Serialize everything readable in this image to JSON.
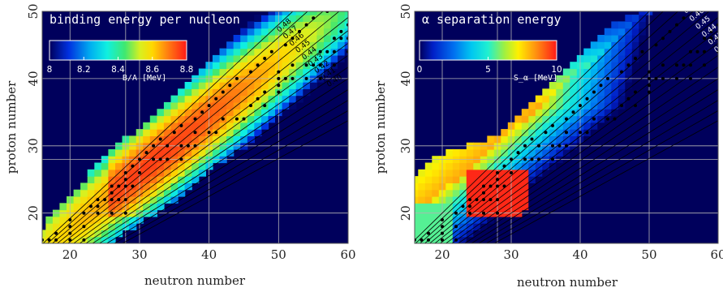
{
  "chart_data": [
    {
      "type": "heatmap",
      "title": "binding energy per nucleon",
      "xlabel": "neutron number",
      "ylabel": "proton number",
      "xlim": [
        16,
        60
      ],
      "ylim": [
        15.5,
        50
      ],
      "xticks": [
        "20",
        "30",
        "40",
        "50",
        "60"
      ],
      "yticks": [
        "20",
        "30",
        "40",
        "50"
      ],
      "grid": true,
      "colorbar": {
        "label": "B/A [MeV]",
        "range": [
          8.0,
          8.8
        ],
        "ticks": [
          "8",
          "8.2",
          "8.4",
          "8.6",
          "8.8"
        ],
        "placement": "top-left"
      },
      "contour_levels": [
        "0.48",
        "0.47",
        "0.46",
        "0.45",
        "0.44",
        "0.43",
        "0.42",
        "0.41",
        "0.40"
      ],
      "contour_values": [
        0.49,
        0.48,
        0.47,
        0.46,
        0.45,
        0.44,
        0.43,
        0.42,
        0.41,
        0.4,
        0.39,
        0.38,
        0.37,
        0.36
      ],
      "bands": [
        {
          "Z": 16,
          "N": [
            16,
            26
          ]
        },
        {
          "Z": 17,
          "N": [
            16,
            27
          ]
        },
        {
          "Z": 18,
          "N": [
            17,
            29
          ]
        },
        {
          "Z": 19,
          "N": [
            17,
            30
          ]
        },
        {
          "Z": 20,
          "N": [
            18,
            32
          ]
        },
        {
          "Z": 21,
          "N": [
            19,
            33
          ]
        },
        {
          "Z": 22,
          "N": [
            20,
            35
          ]
        },
        {
          "Z": 23,
          "N": [
            21,
            36
          ]
        },
        {
          "Z": 24,
          "N": [
            22,
            37
          ]
        },
        {
          "Z": 25,
          "N": [
            23,
            38
          ]
        },
        {
          "Z": 26,
          "N": [
            23,
            39
          ]
        },
        {
          "Z": 27,
          "N": [
            24,
            40
          ]
        },
        {
          "Z": 28,
          "N": [
            25,
            42
          ]
        },
        {
          "Z": 29,
          "N": [
            26,
            43
          ]
        },
        {
          "Z": 30,
          "N": [
            27,
            45
          ]
        },
        {
          "Z": 31,
          "N": [
            28,
            46
          ]
        },
        {
          "Z": 32,
          "N": [
            30,
            47
          ]
        },
        {
          "Z": 33,
          "N": [
            31,
            48
          ]
        },
        {
          "Z": 34,
          "N": [
            32,
            50
          ]
        },
        {
          "Z": 35,
          "N": [
            33,
            51
          ]
        },
        {
          "Z": 36,
          "N": [
            34,
            52
          ]
        },
        {
          "Z": 37,
          "N": [
            35,
            53
          ]
        },
        {
          "Z": 38,
          "N": [
            36,
            54
          ]
        },
        {
          "Z": 39,
          "N": [
            37,
            55
          ]
        },
        {
          "Z": 40,
          "N": [
            38,
            57
          ]
        },
        {
          "Z": 41,
          "N": [
            39,
            58
          ]
        },
        {
          "Z": 42,
          "N": [
            40,
            59
          ]
        },
        {
          "Z": 43,
          "N": [
            41,
            60
          ]
        },
        {
          "Z": 44,
          "N": [
            42,
            60
          ]
        },
        {
          "Z": 45,
          "N": [
            43,
            60
          ]
        },
        {
          "Z": 46,
          "N": [
            44,
            60
          ]
        },
        {
          "Z": 47,
          "N": [
            45,
            60
          ]
        },
        {
          "Z": 48,
          "N": [
            46,
            60
          ]
        },
        {
          "Z": 49,
          "N": [
            47,
            60
          ]
        },
        {
          "Z": 50,
          "N": [
            48,
            60
          ]
        }
      ],
      "stable_nuclei": [
        [
          16,
          16
        ],
        [
          17,
          16
        ],
        [
          18,
          16
        ],
        [
          18,
          17
        ],
        [
          20,
          18
        ],
        [
          20,
          19
        ],
        [
          22,
          20
        ],
        [
          23,
          21
        ],
        [
          24,
          22
        ],
        [
          26,
          23
        ],
        [
          27,
          24
        ],
        [
          28,
          25
        ],
        [
          28,
          26
        ],
        [
          29,
          27
        ],
        [
          30,
          28
        ],
        [
          31,
          29
        ],
        [
          32,
          30
        ],
        [
          33,
          31
        ],
        [
          35,
          32
        ],
        [
          36,
          33
        ],
        [
          38,
          34
        ],
        [
          39,
          35
        ],
        [
          40,
          36
        ],
        [
          41,
          37
        ],
        [
          42,
          38
        ],
        [
          43,
          39
        ],
        [
          44,
          40
        ],
        [
          46,
          41
        ],
        [
          47,
          42
        ],
        [
          48,
          43
        ],
        [
          49,
          44
        ],
        [
          51,
          45
        ],
        [
          52,
          46
        ],
        [
          53,
          47
        ],
        [
          54,
          48
        ],
        [
          55,
          49
        ],
        [
          57,
          50
        ],
        [
          20,
          16
        ],
        [
          22,
          16
        ],
        [
          20,
          17
        ],
        [
          22,
          18
        ],
        [
          24,
          20
        ],
        [
          26,
          20
        ],
        [
          28,
          20
        ],
        [
          24,
          21
        ],
        [
          25,
          22
        ],
        [
          26,
          22
        ],
        [
          27,
          22
        ],
        [
          28,
          22
        ],
        [
          26,
          24
        ],
        [
          28,
          24
        ],
        [
          29,
          24
        ],
        [
          30,
          26
        ],
        [
          32,
          28
        ],
        [
          33,
          28
        ],
        [
          34,
          28
        ],
        [
          36,
          28
        ],
        [
          34,
          30
        ],
        [
          36,
          30
        ],
        [
          37,
          30
        ],
        [
          38,
          30
        ],
        [
          38,
          32
        ],
        [
          40,
          32
        ],
        [
          41,
          32
        ],
        [
          42,
          34
        ],
        [
          44,
          34
        ],
        [
          45,
          34
        ],
        [
          46,
          36
        ],
        [
          48,
          36
        ],
        [
          47,
          37
        ],
        [
          50,
          38
        ],
        [
          48,
          38
        ],
        [
          50,
          40
        ],
        [
          51,
          40
        ],
        [
          52,
          40
        ],
        [
          54,
          40
        ],
        [
          56,
          40
        ],
        [
          52,
          42
        ],
        [
          54,
          42
        ],
        [
          55,
          42
        ],
        [
          56,
          42
        ],
        [
          58,
          42
        ],
        [
          56,
          44
        ],
        [
          57,
          44
        ],
        [
          58,
          44
        ],
        [
          60,
          44
        ],
        [
          58,
          46
        ],
        [
          59,
          46
        ],
        [
          60,
          46
        ],
        [
          60,
          48
        ],
        [
          59,
          47
        ],
        [
          50,
          39
        ],
        [
          50,
          41
        ]
      ]
    },
    {
      "type": "heatmap",
      "title": "α separation energy",
      "xlabel": "neutron number",
      "ylabel": "proton number",
      "xlim": [
        16,
        60
      ],
      "ylim": [
        15.5,
        50
      ],
      "xticks": [
        "20",
        "30",
        "40",
        "50",
        "60"
      ],
      "yticks": [
        "20",
        "30",
        "40",
        "50"
      ],
      "grid": true,
      "colorbar": {
        "label": "S_α [MeV]",
        "range": [
          0,
          10
        ],
        "ticks": [
          "0",
          "5",
          "10"
        ],
        "placement": "top-left"
      },
      "contour_levels": [
        "0.50",
        "0.49",
        "0.48",
        "0.47",
        "0.46",
        "0.45",
        "0.44",
        "0.43",
        "0.42",
        "0.41",
        "0.40"
      ],
      "contour_values": [
        0.5,
        0.49,
        0.48,
        0.47,
        0.46,
        0.45,
        0.44,
        0.43,
        0.42,
        0.41,
        0.4,
        0.39,
        0.38,
        0.37,
        0.36
      ],
      "bands": [
        {
          "Z": 16,
          "N": [
            16,
            27
          ]
        },
        {
          "Z": 17,
          "N": [
            16,
            28
          ]
        },
        {
          "Z": 18,
          "N": [
            16,
            29
          ]
        },
        {
          "Z": 19,
          "N": [
            16,
            30
          ]
        },
        {
          "Z": 20,
          "N": [
            16,
            31
          ]
        },
        {
          "Z": 21,
          "N": [
            16,
            33
          ]
        },
        {
          "Z": 22,
          "N": [
            16,
            34
          ]
        },
        {
          "Z": 23,
          "N": [
            16,
            35
          ]
        },
        {
          "Z": 24,
          "N": [
            16,
            36
          ]
        },
        {
          "Z": 25,
          "N": [
            16,
            37
          ]
        },
        {
          "Z": 26,
          "N": [
            17,
            39
          ]
        },
        {
          "Z": 27,
          "N": [
            18,
            40
          ]
        },
        {
          "Z": 28,
          "N": [
            19,
            41
          ]
        },
        {
          "Z": 29,
          "N": [
            21,
            42
          ]
        },
        {
          "Z": 30,
          "N": [
            24,
            44
          ]
        },
        {
          "Z": 31,
          "N": [
            27,
            45
          ]
        },
        {
          "Z": 32,
          "N": [
            29,
            46
          ]
        },
        {
          "Z": 33,
          "N": [
            30,
            47
          ]
        },
        {
          "Z": 34,
          "N": [
            31,
            49
          ]
        },
        {
          "Z": 35,
          "N": [
            32,
            50
          ]
        },
        {
          "Z": 36,
          "N": [
            33,
            51
          ]
        },
        {
          "Z": 37,
          "N": [
            34,
            52
          ]
        },
        {
          "Z": 38,
          "N": [
            35,
            53
          ]
        },
        {
          "Z": 39,
          "N": [
            36,
            54
          ]
        },
        {
          "Z": 40,
          "N": [
            37,
            55
          ]
        },
        {
          "Z": 41,
          "N": [
            38,
            56
          ]
        },
        {
          "Z": 42,
          "N": [
            39,
            57
          ]
        },
        {
          "Z": 43,
          "N": [
            40,
            58
          ]
        },
        {
          "Z": 44,
          "N": [
            41,
            59
          ]
        },
        {
          "Z": 45,
          "N": [
            42,
            60
          ]
        },
        {
          "Z": 46,
          "N": [
            43,
            60
          ]
        },
        {
          "Z": 47,
          "N": [
            44,
            60
          ]
        },
        {
          "Z": 48,
          "N": [
            45,
            60
          ]
        },
        {
          "Z": 49,
          "N": [
            47,
            60
          ]
        },
        {
          "Z": 50,
          "N": [
            49,
            60
          ]
        }
      ],
      "stable_nuclei": [
        [
          16,
          16
        ],
        [
          17,
          16
        ],
        [
          18,
          16
        ],
        [
          18,
          17
        ],
        [
          20,
          18
        ],
        [
          20,
          19
        ],
        [
          22,
          20
        ],
        [
          23,
          21
        ],
        [
          24,
          22
        ],
        [
          26,
          23
        ],
        [
          27,
          24
        ],
        [
          28,
          25
        ],
        [
          28,
          26
        ],
        [
          29,
          27
        ],
        [
          30,
          28
        ],
        [
          31,
          29
        ],
        [
          32,
          30
        ],
        [
          33,
          31
        ],
        [
          35,
          32
        ],
        [
          36,
          33
        ],
        [
          38,
          34
        ],
        [
          39,
          35
        ],
        [
          40,
          36
        ],
        [
          41,
          37
        ],
        [
          42,
          38
        ],
        [
          43,
          39
        ],
        [
          44,
          40
        ],
        [
          46,
          41
        ],
        [
          47,
          42
        ],
        [
          48,
          43
        ],
        [
          49,
          44
        ],
        [
          51,
          45
        ],
        [
          52,
          46
        ],
        [
          53,
          47
        ],
        [
          54,
          48
        ],
        [
          55,
          49
        ],
        [
          57,
          50
        ],
        [
          20,
          16
        ],
        [
          22,
          16
        ],
        [
          20,
          17
        ],
        [
          22,
          18
        ],
        [
          24,
          20
        ],
        [
          26,
          20
        ],
        [
          28,
          20
        ],
        [
          24,
          21
        ],
        [
          25,
          22
        ],
        [
          26,
          22
        ],
        [
          27,
          22
        ],
        [
          28,
          22
        ],
        [
          26,
          24
        ],
        [
          28,
          24
        ],
        [
          29,
          24
        ],
        [
          30,
          26
        ],
        [
          32,
          28
        ],
        [
          33,
          28
        ],
        [
          34,
          28
        ],
        [
          36,
          28
        ],
        [
          34,
          30
        ],
        [
          36,
          30
        ],
        [
          37,
          30
        ],
        [
          38,
          30
        ],
        [
          38,
          32
        ],
        [
          40,
          32
        ],
        [
          41,
          32
        ],
        [
          42,
          34
        ],
        [
          44,
          34
        ],
        [
          45,
          34
        ],
        [
          46,
          36
        ],
        [
          48,
          36
        ],
        [
          47,
          37
        ],
        [
          50,
          38
        ],
        [
          48,
          38
        ],
        [
          50,
          40
        ],
        [
          51,
          40
        ],
        [
          52,
          40
        ],
        [
          54,
          40
        ],
        [
          56,
          40
        ],
        [
          52,
          42
        ],
        [
          54,
          42
        ],
        [
          55,
          42
        ],
        [
          56,
          42
        ],
        [
          58,
          42
        ],
        [
          56,
          44
        ],
        [
          57,
          44
        ],
        [
          58,
          44
        ],
        [
          60,
          44
        ],
        [
          58,
          46
        ],
        [
          59,
          46
        ],
        [
          60,
          46
        ],
        [
          60,
          48
        ],
        [
          59,
          47
        ],
        [
          50,
          39
        ],
        [
          50,
          41
        ]
      ]
    }
  ],
  "colors": {
    "background": "#00005c",
    "grid": "#b4b4b4",
    "contour": "#000000",
    "dots": "#000000"
  }
}
